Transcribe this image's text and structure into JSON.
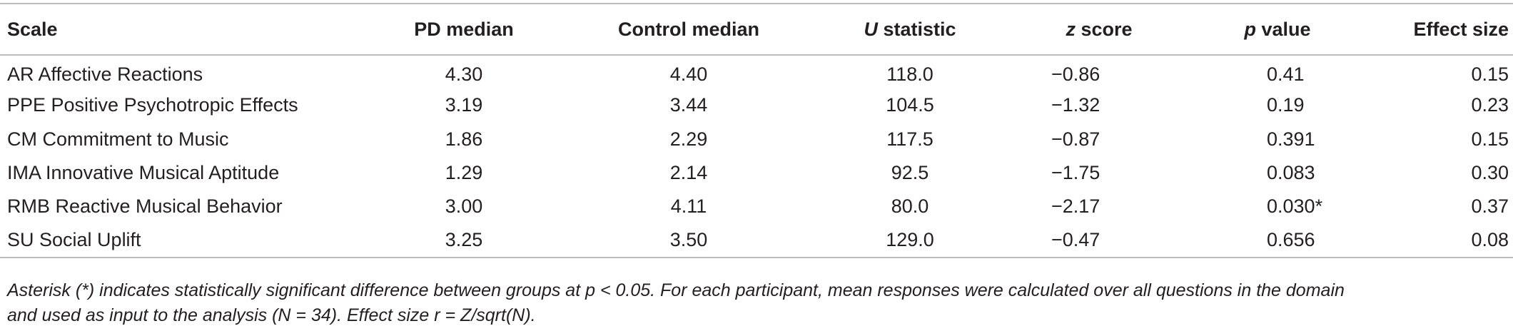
{
  "table": {
    "headers": {
      "scale": "Scale",
      "pd_median": "PD median",
      "control_median": "Control median",
      "u_italic": "U",
      "u_rest": " statistic",
      "z_italic": "z",
      "z_rest": " score",
      "p_italic": "p",
      "p_rest": " value",
      "effect_size": "Effect size"
    },
    "rows": [
      {
        "scale": "AR Affective Reactions",
        "pd": "4.30",
        "control": "4.40",
        "u": "118.0",
        "z": "−0.86",
        "p": "0.41",
        "effect": "0.15"
      },
      {
        "scale": "PPE Positive Psychotropic Effects",
        "pd": "3.19",
        "control": "3.44",
        "u": "104.5",
        "z": "−1.32",
        "p": "0.19",
        "effect": "0.23"
      },
      {
        "scale": "CM Commitment to Music",
        "pd": "1.86",
        "control": "2.29",
        "u": "117.5",
        "z": "−0.87",
        "p": "0.391",
        "effect": "0.15"
      },
      {
        "scale": "IMA Innovative Musical Aptitude",
        "pd": "1.29",
        "control": "2.14",
        "u": "92.5",
        "z": "−1.75",
        "p": "0.083",
        "effect": "0.30"
      },
      {
        "scale": "RMB Reactive Musical Behavior",
        "pd": "3.00",
        "control": "4.11",
        "u": "80.0",
        "z": "−2.17",
        "p": "0.030*",
        "effect": "0.37"
      },
      {
        "scale": "SU Social Uplift",
        "pd": "3.25",
        "control": "3.50",
        "u": "129.0",
        "z": "−0.47",
        "p": "0.656",
        "effect": "0.08"
      }
    ]
  },
  "footnote": {
    "line1": "Asterisk (*) indicates statistically significant difference between groups at p < 0.05. For each participant, mean responses were calculated over all questions in the domain",
    "line2": "and used as input to the analysis (N = 34). Effect size r = Z/sqrt(N)."
  }
}
